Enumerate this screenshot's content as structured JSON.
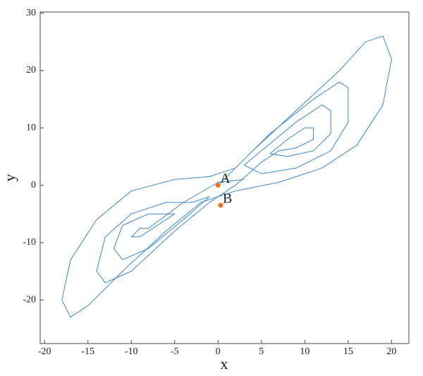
{
  "chart_data": {
    "type": "line",
    "x_label": "x",
    "y_label": "y",
    "xlim": [
      -20.5,
      22
    ],
    "ylim": [
      -27.6,
      30.2
    ],
    "xticks": [
      -20,
      -15,
      -10,
      -5,
      0,
      5,
      10,
      15,
      20
    ],
    "yticks": [
      -20,
      -10,
      0,
      10,
      20,
      30
    ],
    "series": [
      {
        "color": "#3a87c8",
        "x": [
          0,
          4,
          9,
          14,
          17,
          19,
          20,
          19,
          16,
          12,
          7,
          2,
          -2,
          -6,
          -11,
          -15,
          -17,
          -18,
          -17,
          -14,
          -10,
          -5,
          -1,
          2,
          6,
          11,
          14,
          15,
          15,
          13,
          9,
          5,
          3,
          5,
          9,
          12,
          13,
          13,
          11,
          8,
          6,
          8,
          10,
          11,
          11,
          9,
          7,
          5,
          2,
          -1,
          -5,
          -10,
          -13,
          -14,
          -13,
          -10,
          -6,
          -3,
          -1,
          -4,
          -8,
          -11,
          -12,
          -11,
          -8,
          -5,
          -7,
          -9,
          -10,
          -9,
          -8,
          -4,
          0,
          3
        ],
        "y": [
          0,
          6,
          13,
          20,
          25,
          26,
          22,
          14,
          7,
          3,
          0.5,
          -1,
          -3,
          -8,
          -15,
          -21,
          -23,
          -20,
          -13,
          -6,
          -1,
          1,
          1.5,
          3,
          9,
          15,
          18,
          17,
          11,
          6,
          3,
          2,
          3.5,
          6,
          11,
          14,
          13,
          9,
          6,
          5,
          5.5,
          8,
          10,
          10,
          8,
          6.5,
          6,
          4,
          0,
          -3,
          -8,
          -15,
          -17,
          -15,
          -9,
          -5,
          -3,
          -3,
          -2,
          -6,
          -11,
          -13,
          -11,
          -7,
          -5,
          -5,
          -7,
          -9,
          -9,
          -7.5,
          -7.5,
          -3,
          0.5,
          1
        ]
      }
    ],
    "points": [
      {
        "label": "A",
        "x": 0,
        "y": 0,
        "color": "#e8731e"
      },
      {
        "label": "B",
        "x": 0.3,
        "y": -3.5,
        "color": "#e8731e"
      }
    ]
  }
}
